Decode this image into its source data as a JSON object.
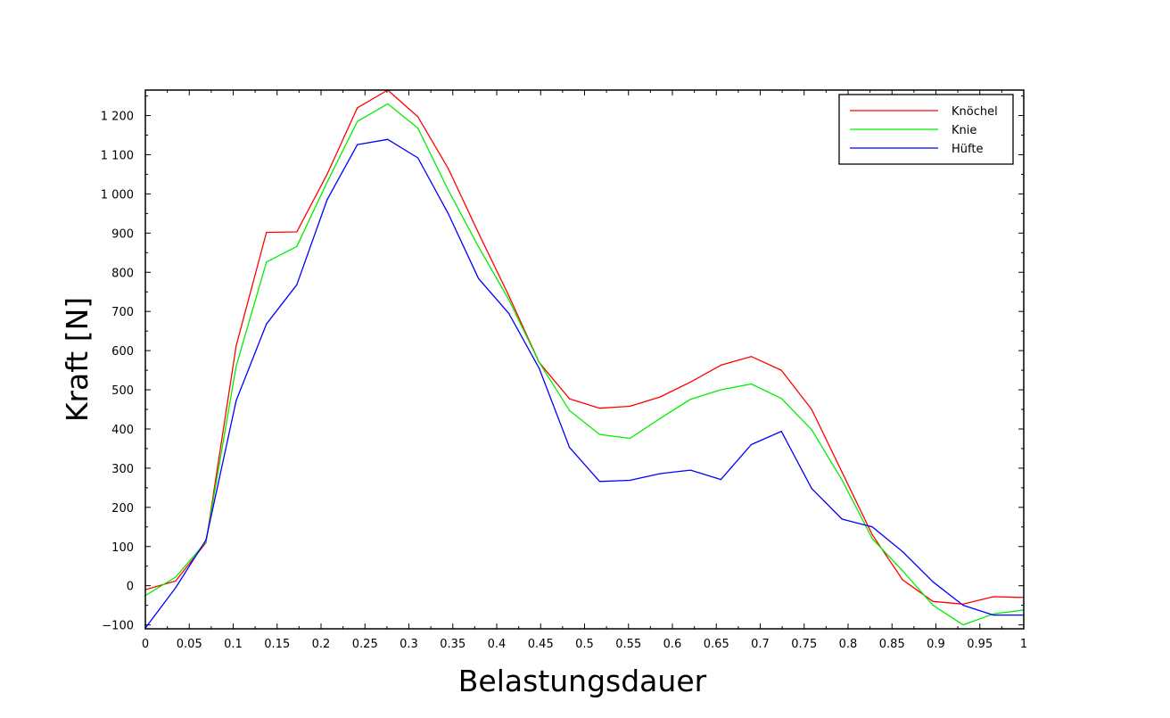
{
  "chart_data": {
    "type": "line",
    "xlabel": "Belastungsdauer",
    "ylabel": "Kraft [N]",
    "xlim": [
      0,
      1
    ],
    "ylim": [
      -110,
      1265
    ],
    "xticks": [
      0,
      0.05,
      0.1,
      0.15,
      0.2,
      0.25,
      0.3,
      0.35,
      0.4,
      0.45,
      0.5,
      0.55,
      0.6,
      0.65,
      0.7,
      0.75,
      0.8,
      0.85,
      0.9,
      0.95,
      1
    ],
    "xtick_labels": [
      "0",
      "0.05",
      "0.1",
      "0.15",
      "0.2",
      "0.25",
      "0.3",
      "0.35",
      "0.4",
      "0.45",
      "0.5",
      "0.55",
      "0.6",
      "0.65",
      "0.7",
      "0.75",
      "0.8",
      "0.85",
      "0.9",
      "0.95",
      "1"
    ],
    "yticks": [
      -100,
      0,
      100,
      200,
      300,
      400,
      500,
      600,
      700,
      800,
      900,
      1000,
      1100,
      1200
    ],
    "ytick_labels": [
      "−100",
      "0",
      "100",
      "200",
      "300",
      "400",
      "500",
      "600",
      "700",
      "800",
      "900",
      "1 000",
      "1 100",
      "1 200"
    ],
    "grid": false,
    "legend_position": "top-right",
    "x": [
      0,
      0.0345,
      0.069,
      0.1034,
      0.1379,
      0.1724,
      0.2069,
      0.2414,
      0.2759,
      0.3103,
      0.3448,
      0.3793,
      0.4138,
      0.4483,
      0.4828,
      0.5172,
      0.5517,
      0.5862,
      0.6207,
      0.6552,
      0.6897,
      0.7241,
      0.7586,
      0.7931,
      0.8276,
      0.8621,
      0.8966,
      0.931,
      0.9655,
      1
    ],
    "series": [
      {
        "name": "Knöchel",
        "color": "#ff0000",
        "values": [
          -10,
          12,
          110,
          612,
          902,
          903,
          1050,
          1220,
          1265,
          1197,
          1065,
          900,
          740,
          570,
          477,
          453,
          458,
          482,
          520,
          563,
          585,
          550,
          450,
          290,
          130,
          15,
          -40,
          -47,
          -28,
          -30
        ]
      },
      {
        "name": "Knie",
        "color": "#00ee00",
        "values": [
          -25,
          22,
          112,
          560,
          826,
          866,
          1030,
          1185,
          1230,
          1168,
          1010,
          865,
          730,
          570,
          447,
          386,
          376,
          427,
          476,
          500,
          515,
          478,
          398,
          270,
          120,
          38,
          -50,
          -100,
          -72,
          -62
        ]
      },
      {
        "name": "Hüfte",
        "color": "#0000ff",
        "values": [
          -108,
          -5,
          117,
          472,
          668,
          768,
          985,
          1126,
          1139,
          1092,
          950,
          784,
          695,
          555,
          353,
          266,
          269,
          286,
          295,
          271,
          360,
          394,
          248,
          170,
          150,
          87,
          10,
          -50,
          -75,
          -75
        ]
      }
    ]
  }
}
